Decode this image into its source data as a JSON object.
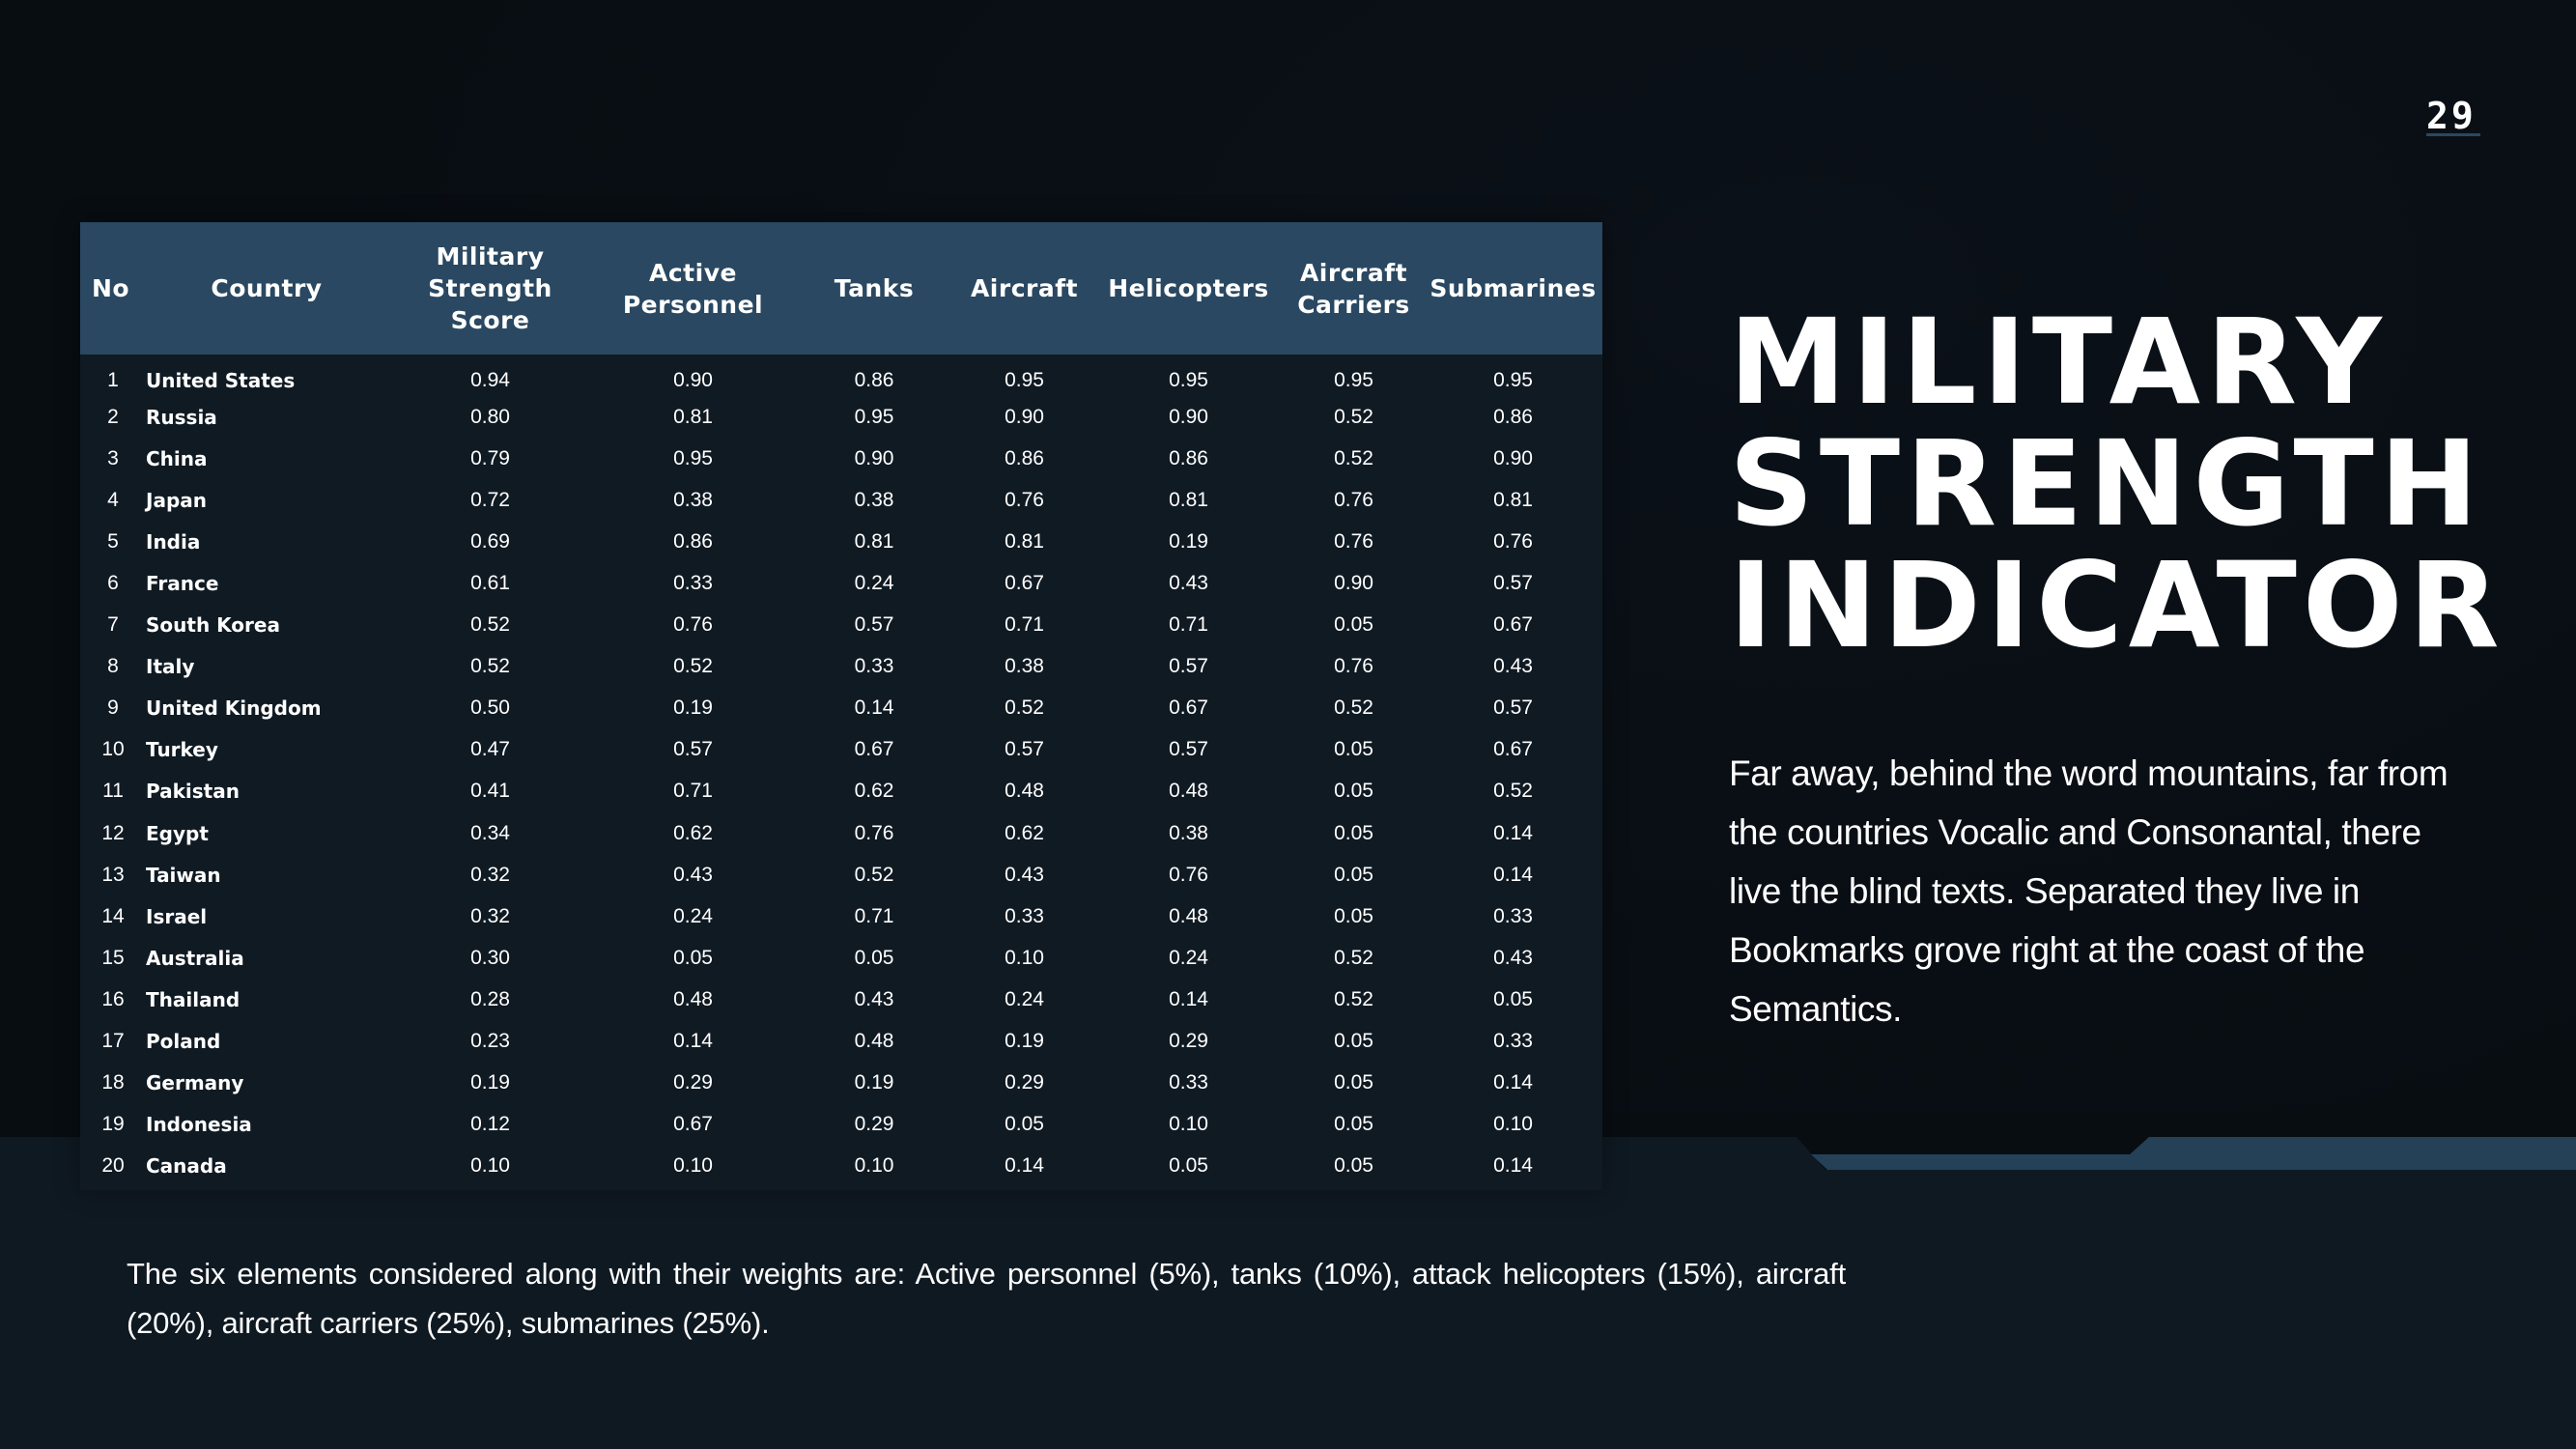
{
  "page_number": "29",
  "title_lines": [
    "MILITARY",
    "STRENGTH",
    "INDICATOR"
  ],
  "description": "Far away, behind the word mountains, far from the countries Vocalic and Consonantal, there live the blind texts. Separated they live in Bookmarks grove right at the coast of the Semantics.",
  "footnote": "The six elements considered along with their weights are: Active personnel (5%), tanks (10%), attack helicopters (15%), aircraft (20%), aircraft carriers (25%), submarines (25%).",
  "colors": {
    "background": "#080d12",
    "table_header": "#2a4861",
    "table_body": "#101a23",
    "band": "#0f1922",
    "accent_stripe": "#244157"
  },
  "table": {
    "headers": {
      "no": "No",
      "country": "Country",
      "score_line1": "Military",
      "score_line2": "Strength Score",
      "personnel_line1": "Active",
      "personnel_line2": "Personnel",
      "tanks": "Tanks",
      "aircraft": "Aircraft",
      "helicopters": "Helicopters",
      "carriers_line1": "Aircraft",
      "carriers_line2": "Carriers",
      "submarines": "Submarines"
    },
    "rows": [
      {
        "no": "1",
        "country": "United States",
        "score": "0.94",
        "personnel": "0.90",
        "tanks": "0.86",
        "aircraft": "0.95",
        "helicopters": "0.95",
        "carriers": "0.95",
        "submarines": "0.95"
      },
      {
        "no": "2",
        "country": "Russia",
        "score": "0.80",
        "personnel": "0.81",
        "tanks": "0.95",
        "aircraft": "0.90",
        "helicopters": "0.90",
        "carriers": "0.52",
        "submarines": "0.86"
      },
      {
        "no": "3",
        "country": "China",
        "score": "0.79",
        "personnel": "0.95",
        "tanks": "0.90",
        "aircraft": "0.86",
        "helicopters": "0.86",
        "carriers": "0.52",
        "submarines": "0.90"
      },
      {
        "no": "4",
        "country": "Japan",
        "score": "0.72",
        "personnel": "0.38",
        "tanks": "0.38",
        "aircraft": "0.76",
        "helicopters": "0.81",
        "carriers": "0.76",
        "submarines": "0.81"
      },
      {
        "no": "5",
        "country": "India",
        "score": "0.69",
        "personnel": "0.86",
        "tanks": "0.81",
        "aircraft": "0.81",
        "helicopters": "0.19",
        "carriers": "0.76",
        "submarines": "0.76"
      },
      {
        "no": "6",
        "country": "France",
        "score": "0.61",
        "personnel": "0.33",
        "tanks": "0.24",
        "aircraft": "0.67",
        "helicopters": "0.43",
        "carriers": "0.90",
        "submarines": "0.57"
      },
      {
        "no": "7",
        "country": "South Korea",
        "score": "0.52",
        "personnel": "0.76",
        "tanks": "0.57",
        "aircraft": "0.71",
        "helicopters": "0.71",
        "carriers": "0.05",
        "submarines": "0.67"
      },
      {
        "no": "8",
        "country": "Italy",
        "score": "0.52",
        "personnel": "0.52",
        "tanks": "0.33",
        "aircraft": "0.38",
        "helicopters": "0.57",
        "carriers": "0.76",
        "submarines": "0.43"
      },
      {
        "no": "9",
        "country": "United Kingdom",
        "score": "0.50",
        "personnel": "0.19",
        "tanks": "0.14",
        "aircraft": "0.52",
        "helicopters": "0.67",
        "carriers": "0.52",
        "submarines": "0.57"
      },
      {
        "no": "10",
        "country": "Turkey",
        "score": "0.47",
        "personnel": "0.57",
        "tanks": "0.67",
        "aircraft": "0.57",
        "helicopters": "0.57",
        "carriers": "0.05",
        "submarines": "0.67"
      },
      {
        "no": "11",
        "country": "Pakistan",
        "score": "0.41",
        "personnel": "0.71",
        "tanks": "0.62",
        "aircraft": "0.48",
        "helicopters": "0.48",
        "carriers": "0.05",
        "submarines": "0.52"
      },
      {
        "no": "12",
        "country": "Egypt",
        "score": "0.34",
        "personnel": "0.62",
        "tanks": "0.76",
        "aircraft": "0.62",
        "helicopters": "0.38",
        "carriers": "0.05",
        "submarines": "0.14"
      },
      {
        "no": "13",
        "country": "Taiwan",
        "score": "0.32",
        "personnel": "0.43",
        "tanks": "0.52",
        "aircraft": "0.43",
        "helicopters": "0.76",
        "carriers": "0.05",
        "submarines": "0.14"
      },
      {
        "no": "14",
        "country": "Israel",
        "score": "0.32",
        "personnel": "0.24",
        "tanks": "0.71",
        "aircraft": "0.33",
        "helicopters": "0.48",
        "carriers": "0.05",
        "submarines": "0.33"
      },
      {
        "no": "15",
        "country": "Australia",
        "score": "0.30",
        "personnel": "0.05",
        "tanks": "0.05",
        "aircraft": "0.10",
        "helicopters": "0.24",
        "carriers": "0.52",
        "submarines": "0.43"
      },
      {
        "no": "16",
        "country": "Thailand",
        "score": "0.28",
        "personnel": "0.48",
        "tanks": "0.43",
        "aircraft": "0.24",
        "helicopters": "0.14",
        "carriers": "0.52",
        "submarines": "0.05"
      },
      {
        "no": "17",
        "country": "Poland",
        "score": "0.23",
        "personnel": "0.14",
        "tanks": "0.48",
        "aircraft": "0.19",
        "helicopters": "0.29",
        "carriers": "0.05",
        "submarines": "0.33"
      },
      {
        "no": "18",
        "country": "Germany",
        "score": "0.19",
        "personnel": "0.29",
        "tanks": "0.19",
        "aircraft": "0.29",
        "helicopters": "0.33",
        "carriers": "0.05",
        "submarines": "0.14"
      },
      {
        "no": "19",
        "country": "Indonesia",
        "score": "0.12",
        "personnel": "0.67",
        "tanks": "0.29",
        "aircraft": "0.05",
        "helicopters": "0.10",
        "carriers": "0.05",
        "submarines": "0.10"
      },
      {
        "no": "20",
        "country": "Canada",
        "score": "0.10",
        "personnel": "0.10",
        "tanks": "0.10",
        "aircraft": "0.14",
        "helicopters": "0.05",
        "carriers": "0.05",
        "submarines": "0.14"
      }
    ]
  }
}
